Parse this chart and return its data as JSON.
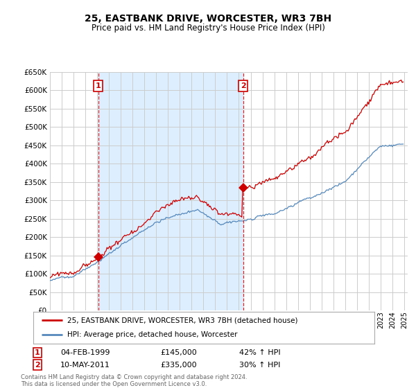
{
  "title": "25, EASTBANK DRIVE, WORCESTER, WR3 7BH",
  "subtitle": "Price paid vs. HM Land Registry's House Price Index (HPI)",
  "legend_line1": "25, EASTBANK DRIVE, WORCESTER, WR3 7BH (detached house)",
  "legend_line2": "HPI: Average price, detached house, Worcester",
  "label1_date": "04-FEB-1999",
  "label1_price": "£145,000",
  "label1_hpi": "42% ↑ HPI",
  "label2_date": "10-MAY-2011",
  "label2_price": "£335,000",
  "label2_hpi": "30% ↑ HPI",
  "footnote": "Contains HM Land Registry data © Crown copyright and database right 2024.\nThis data is licensed under the Open Government Licence v3.0.",
  "red_color": "#cc0000",
  "blue_color": "#5588bb",
  "shade_color": "#ddeeff",
  "grid_color": "#cccccc",
  "background_color": "#ffffff",
  "ylim": [
    0,
    650000
  ],
  "yticks": [
    0,
    50000,
    100000,
    150000,
    200000,
    250000,
    300000,
    350000,
    400000,
    450000,
    500000,
    550000,
    600000,
    650000
  ],
  "marker1_x": 1999.09,
  "marker1_y": 145000,
  "marker2_x": 2011.36,
  "marker2_y": 335000,
  "vline1_x": 1999.09,
  "vline2_x": 2011.36,
  "xlim_left": 1995.0,
  "xlim_right": 2025.3
}
